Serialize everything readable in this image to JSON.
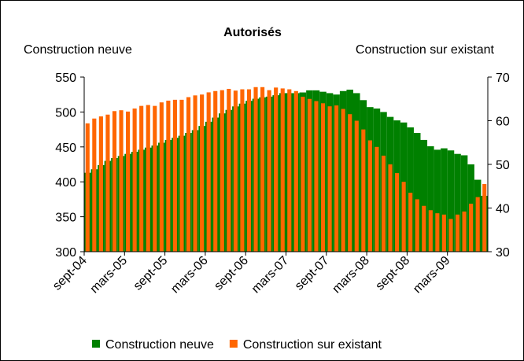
{
  "chart_data": {
    "type": "bar",
    "title": "Autorisés",
    "y_label": "Construction neuve",
    "y2_label": "Construction sur existant",
    "categories": [
      "sept-04",
      null,
      null,
      null,
      null,
      null,
      "mars-05",
      null,
      null,
      null,
      null,
      null,
      "sept-05",
      null,
      null,
      null,
      null,
      null,
      "mars-06",
      null,
      null,
      null,
      null,
      null,
      "sept-06",
      null,
      null,
      null,
      null,
      null,
      "mars-07",
      null,
      null,
      null,
      null,
      null,
      "sept-07",
      null,
      null,
      null,
      null,
      null,
      "mars-08",
      null,
      null,
      null,
      null,
      null,
      "sept-08",
      null,
      null,
      null,
      null,
      null,
      "mars-09",
      null,
      null,
      null,
      null,
      null
    ],
    "series": [
      {
        "name": "Construction neuve",
        "color": "#008000",
        "axis": "y",
        "values": [
          413,
          418,
          424,
          430,
          434,
          437,
          440,
          443,
          446,
          449,
          452,
          456,
          460,
          463,
          466,
          470,
          474,
          480,
          486,
          492,
          498,
          503,
          508,
          512,
          516,
          519,
          521,
          522,
          524,
          527,
          527,
          527,
          528,
          531,
          531,
          529,
          527,
          525,
          530,
          532,
          527,
          517,
          507,
          505,
          500,
          493,
          488,
          485,
          478,
          470,
          460,
          451,
          446,
          448,
          445,
          440,
          438,
          425,
          403,
          380
        ]
      },
      {
        "name": "Construction sur existant",
        "color": "#ff6600",
        "axis": "y2",
        "values": [
          59.4,
          60.5,
          61,
          61.4,
          62.2,
          62.4,
          62.1,
          62.8,
          63.4,
          63.6,
          63.4,
          64.2,
          64.6,
          64.8,
          64.8,
          65.4,
          65.8,
          66,
          66.5,
          66.8,
          67,
          67.3,
          66.9,
          67.2,
          67.2,
          67.7,
          67.7,
          67,
          67.6,
          67.4,
          67.2,
          66.8,
          65.5,
          65,
          64.5,
          64,
          63.3,
          63.5,
          62.7,
          61.5,
          60,
          58,
          55.5,
          54,
          52,
          50,
          48,
          46,
          43.5,
          42,
          40.5,
          39.5,
          38.8,
          38.5,
          37.5,
          38.5,
          39.2,
          41,
          42.5,
          45.5
        ]
      }
    ],
    "ylim": [
      300,
      550
    ],
    "yticks": [
      300,
      350,
      400,
      450,
      500,
      550
    ],
    "y2lim": [
      30,
      70
    ],
    "y2ticks": [
      30,
      40,
      50,
      60,
      70
    ],
    "legend": "bottom"
  }
}
